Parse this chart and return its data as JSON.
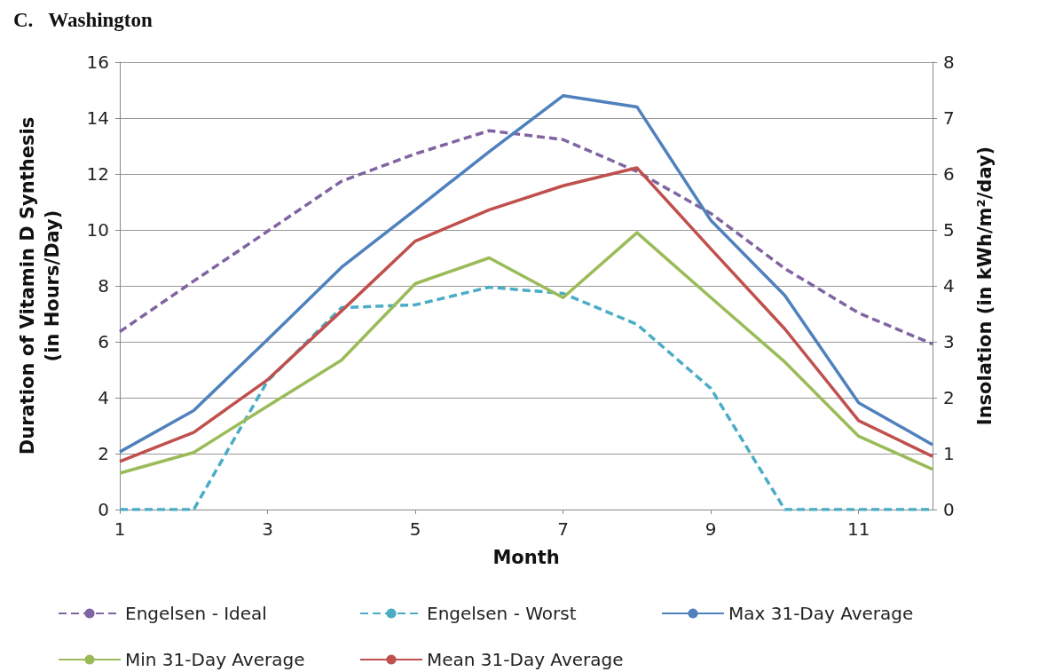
{
  "chart_data": {
    "type": "line",
    "title": "C.   Washington",
    "xlabel": "Month",
    "ylabel": "Duration of Vitamin D Synthesis\n(in Hours/Day)",
    "y2label": "Insolation (in kWh/m²/day)",
    "x": [
      1,
      2,
      3,
      4,
      5,
      6,
      7,
      8,
      9,
      10,
      11,
      12
    ],
    "xlim": [
      1,
      12
    ],
    "xticks": [
      1,
      3,
      5,
      7,
      9,
      11
    ],
    "ylim": [
      0,
      16
    ],
    "yticks": [
      0,
      2,
      4,
      6,
      8,
      10,
      12,
      14,
      16
    ],
    "y2lim": [
      0,
      8
    ],
    "y2ticks": [
      0,
      1,
      2,
      3,
      4,
      5,
      6,
      7,
      8
    ],
    "grid": "y",
    "legend": "bottom",
    "marker": "none",
    "series": [
      {
        "name": "Engelsen - Ideal",
        "color": "#8064a2",
        "line_style": "dashed",
        "values": [
          6.36,
          8.17,
          9.95,
          11.74,
          12.72,
          13.55,
          13.23,
          12.09,
          10.59,
          8.62,
          7.03,
          5.92
        ]
      },
      {
        "name": "Engelsen - Worst",
        "color": "#4bacc6",
        "line_style": "dashed",
        "values": [
          0,
          0,
          4.6,
          7.22,
          7.32,
          7.95,
          7.73,
          6.62,
          4.33,
          0,
          0,
          0
        ]
      },
      {
        "name": "Max 31-Day Average",
        "color": "#4f81bd",
        "line_style": "solid",
        "axis": "y2",
        "values": [
          1.03,
          1.77,
          3.04,
          4.33,
          5.36,
          6.4,
          7.4,
          7.2,
          5.17,
          3.83,
          1.91,
          1.16
        ]
      },
      {
        "name": "Min 31-Day Average",
        "color": "#9bbb59",
        "line_style": "solid",
        "axis": "y2",
        "values": [
          0.65,
          1.02,
          1.85,
          2.67,
          4.04,
          4.5,
          3.79,
          4.95,
          3.79,
          2.64,
          1.31,
          0.72
        ]
      },
      {
        "name": "Mean 31-Day Average",
        "color": "#c0504d",
        "line_style": "solid",
        "axis": "y2",
        "values": [
          0.86,
          1.38,
          2.32,
          3.55,
          4.8,
          5.36,
          5.79,
          6.11,
          4.66,
          3.23,
          1.59,
          0.95
        ]
      }
    ]
  }
}
